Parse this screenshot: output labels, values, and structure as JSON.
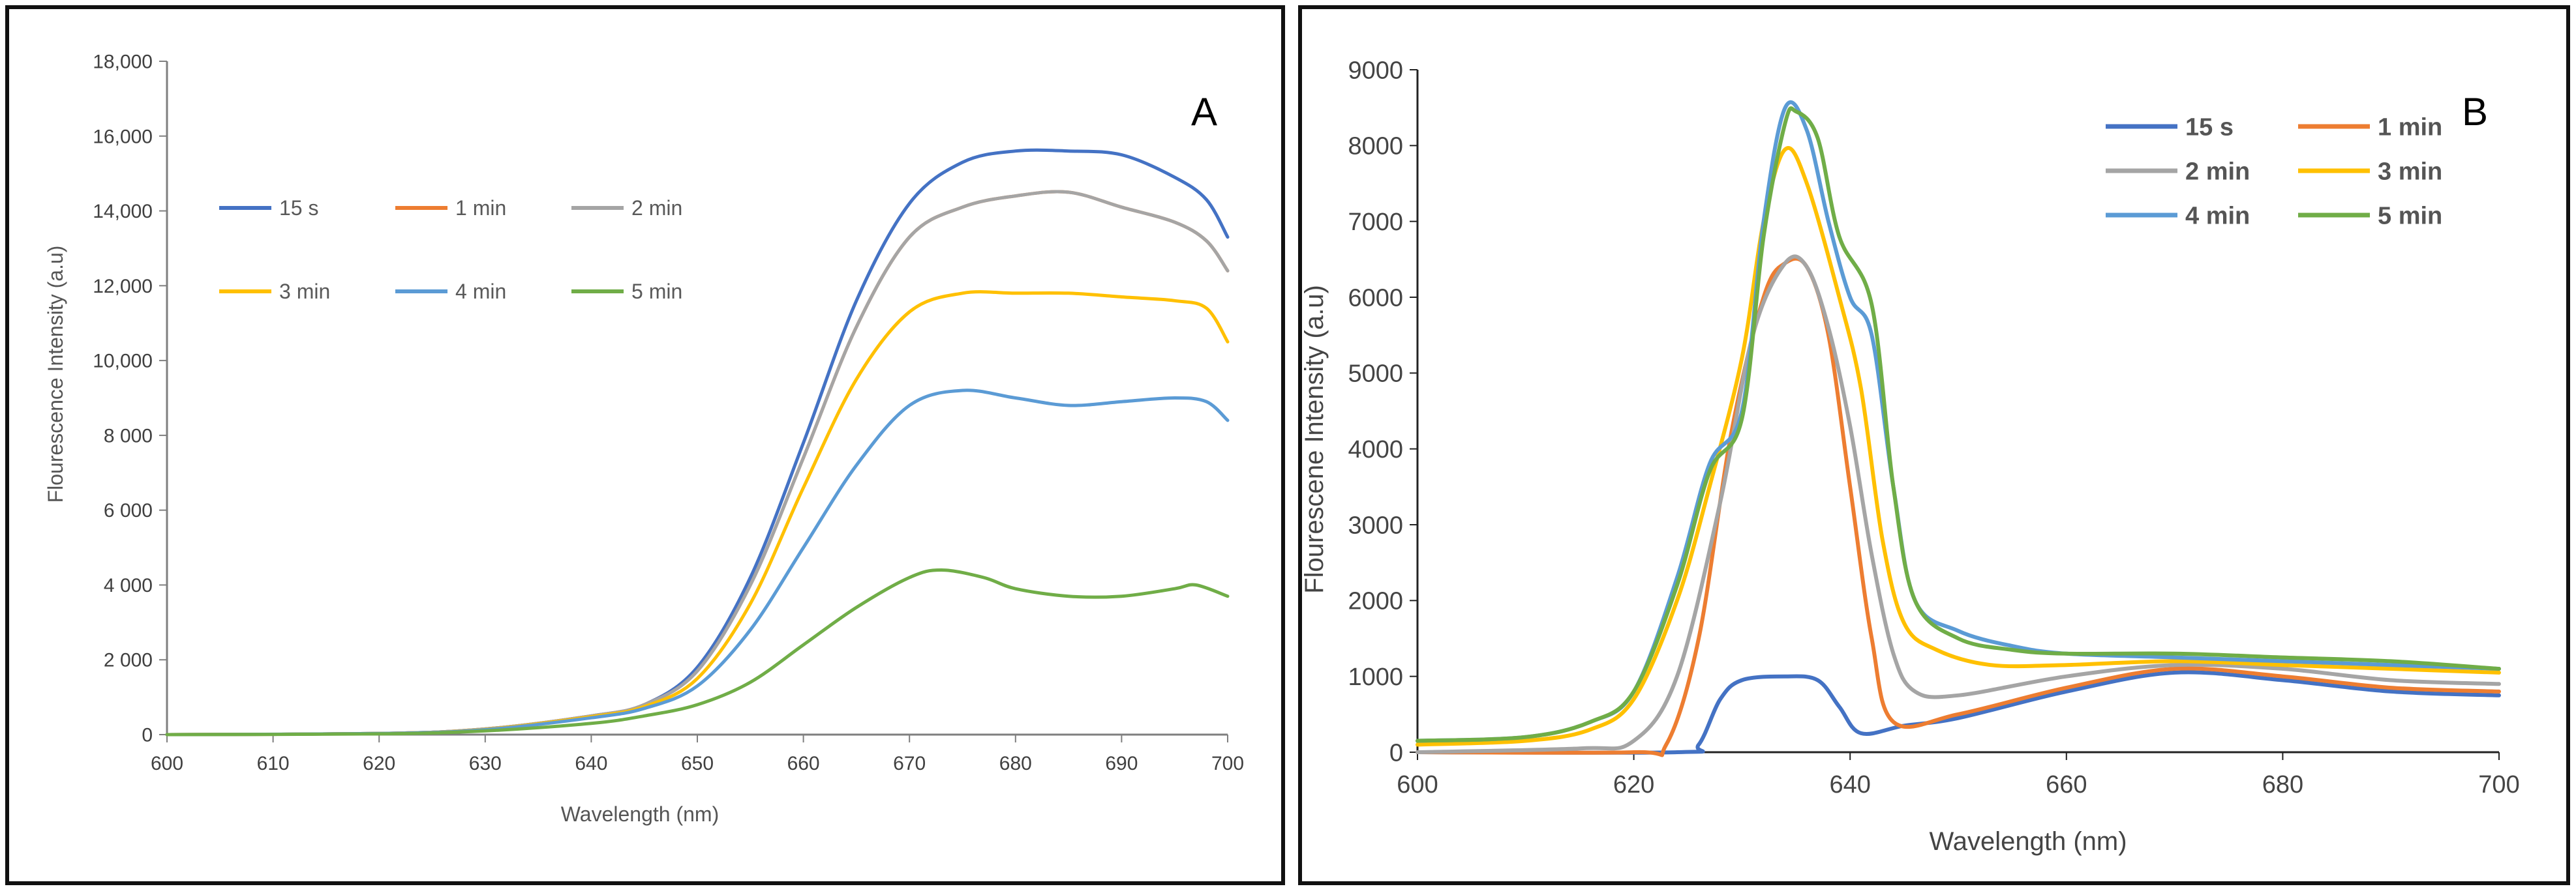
{
  "chart_data": [
    {
      "type": "line",
      "panel": "A",
      "xlabel": "Wavelength (nm)",
      "ylabel": "Flourescence Intensity (a.u)",
      "xlim": [
        600,
        700
      ],
      "ylim": [
        0,
        18000
      ],
      "x_ticks": [
        "600",
        "610",
        "620",
        "630",
        "640",
        "650",
        "660",
        "670",
        "680",
        "690",
        "700"
      ],
      "y_ticks": [
        "0",
        "2 000",
        "4 000",
        "6 000",
        "8 000",
        "10,000",
        "12,000",
        "14,000",
        "16,000",
        "18,000"
      ],
      "legend_position": "top-left",
      "series": [
        {
          "name": "15 s",
          "color": "#4472c4",
          "points": [
            [
              600,
              0
            ],
            [
              620,
              30
            ],
            [
              630,
              150
            ],
            [
              640,
              500
            ],
            [
              645,
              800
            ],
            [
              650,
              1800
            ],
            [
              655,
              4200
            ],
            [
              660,
              7800
            ],
            [
              665,
              11600
            ],
            [
              670,
              14200
            ],
            [
              675,
              15300
            ],
            [
              680,
              15600
            ],
            [
              685,
              15600
            ],
            [
              690,
              15500
            ],
            [
              695,
              14900
            ],
            [
              698,
              14300
            ],
            [
              700,
              13300
            ]
          ]
        },
        {
          "name": "1 min",
          "color": "#ed7d31",
          "points": [
            [
              600,
              0
            ],
            [
              620,
              30
            ],
            [
              630,
              150
            ],
            [
              640,
              500
            ],
            [
              645,
              800
            ],
            [
              650,
              1700
            ],
            [
              655,
              4000
            ],
            [
              660,
              7400
            ],
            [
              665,
              10900
            ],
            [
              670,
              13300
            ],
            [
              675,
              14100
            ],
            [
              680,
              14400
            ],
            [
              685,
              14500
            ],
            [
              690,
              14100
            ],
            [
              695,
              13700
            ],
            [
              698,
              13200
            ],
            [
              700,
              12400
            ]
          ]
        },
        {
          "name": "2 min",
          "color": "#a5a5a5",
          "points": [
            [
              600,
              0
            ],
            [
              620,
              30
            ],
            [
              630,
              150
            ],
            [
              640,
              500
            ],
            [
              645,
              800
            ],
            [
              650,
              1700
            ],
            [
              655,
              4000
            ],
            [
              660,
              7400
            ],
            [
              665,
              10900
            ],
            [
              670,
              13300
            ],
            [
              675,
              14100
            ],
            [
              680,
              14400
            ],
            [
              685,
              14500
            ],
            [
              690,
              14100
            ],
            [
              695,
              13700
            ],
            [
              698,
              13200
            ],
            [
              700,
              12400
            ]
          ]
        },
        {
          "name": "3 min",
          "color": "#ffc000",
          "points": [
            [
              600,
              0
            ],
            [
              620,
              30
            ],
            [
              630,
              140
            ],
            [
              640,
              480
            ],
            [
              645,
              750
            ],
            [
              650,
              1500
            ],
            [
              655,
              3500
            ],
            [
              660,
              6600
            ],
            [
              665,
              9500
            ],
            [
              670,
              11300
            ],
            [
              675,
              11800
            ],
            [
              680,
              11800
            ],
            [
              685,
              11800
            ],
            [
              690,
              11700
            ],
            [
              695,
              11600
            ],
            [
              698,
              11400
            ],
            [
              700,
              10500
            ]
          ]
        },
        {
          "name": "4 min",
          "color": "#5b9bd5",
          "points": [
            [
              600,
              0
            ],
            [
              620,
              30
            ],
            [
              630,
              130
            ],
            [
              640,
              450
            ],
            [
              645,
              700
            ],
            [
              650,
              1300
            ],
            [
              655,
              2800
            ],
            [
              660,
              5000
            ],
            [
              665,
              7200
            ],
            [
              670,
              8800
            ],
            [
              675,
              9200
            ],
            [
              680,
              9000
            ],
            [
              685,
              8800
            ],
            [
              690,
              8900
            ],
            [
              695,
              9000
            ],
            [
              698,
              8900
            ],
            [
              700,
              8400
            ]
          ]
        },
        {
          "name": "5 min",
          "color": "#70ad47",
          "points": [
            [
              600,
              0
            ],
            [
              620,
              20
            ],
            [
              630,
              100
            ],
            [
              640,
              300
            ],
            [
              645,
              500
            ],
            [
              650,
              800
            ],
            [
              655,
              1400
            ],
            [
              660,
              2400
            ],
            [
              665,
              3400
            ],
            [
              670,
              4200
            ],
            [
              673,
              4400
            ],
            [
              677,
              4200
            ],
            [
              680,
              3900
            ],
            [
              685,
              3700
            ],
            [
              690,
              3700
            ],
            [
              695,
              3900
            ],
            [
              697,
              4000
            ],
            [
              700,
              3700
            ]
          ]
        }
      ]
    },
    {
      "type": "line",
      "panel": "B",
      "xlabel": "Wavelength (nm)",
      "ylabel": "Flourescene Intensity (a.u)",
      "xlim": [
        600,
        700
      ],
      "ylim": [
        0,
        9000
      ],
      "x_ticks": [
        "600",
        "620",
        "640",
        "660",
        "680",
        "700"
      ],
      "y_ticks": [
        "0",
        "1000",
        "2000",
        "3000",
        "4000",
        "5000",
        "6000",
        "7000",
        "8000",
        "9000"
      ],
      "legend_position": "top-right",
      "series": [
        {
          "name": "15 s",
          "color": "#4472c4",
          "points": [
            [
              600,
              0
            ],
            [
              624,
              0
            ],
            [
              626,
              100
            ],
            [
              628,
              700
            ],
            [
              630,
              950
            ],
            [
              634,
              1000
            ],
            [
              637,
              950
            ],
            [
              639,
              600
            ],
            [
              641,
              250
            ],
            [
              645,
              350
            ],
            [
              650,
              450
            ],
            [
              660,
              800
            ],
            [
              670,
              1050
            ],
            [
              680,
              950
            ],
            [
              690,
              800
            ],
            [
              700,
              750
            ]
          ]
        },
        {
          "name": "1 min",
          "color": "#ed7d31",
          "points": [
            [
              600,
              0
            ],
            [
              620,
              0
            ],
            [
              623,
              100
            ],
            [
              626,
              1500
            ],
            [
              629,
              4200
            ],
            [
              632,
              6000
            ],
            [
              634,
              6450
            ],
            [
              636,
              6400
            ],
            [
              638,
              5500
            ],
            [
              640,
              3500
            ],
            [
              642,
              1500
            ],
            [
              644,
              400
            ],
            [
              650,
              500
            ],
            [
              660,
              850
            ],
            [
              670,
              1100
            ],
            [
              680,
              1000
            ],
            [
              690,
              850
            ],
            [
              700,
              800
            ]
          ]
        },
        {
          "name": "2 min",
          "color": "#a5a5a5",
          "points": [
            [
              600,
              0
            ],
            [
              615,
              50
            ],
            [
              620,
              150
            ],
            [
              624,
              1000
            ],
            [
              628,
              3300
            ],
            [
              631,
              5500
            ],
            [
              634,
              6450
            ],
            [
              636,
              6400
            ],
            [
              638,
              5600
            ],
            [
              640,
              4300
            ],
            [
              642,
              2600
            ],
            [
              644,
              1300
            ],
            [
              646,
              800
            ],
            [
              650,
              750
            ],
            [
              660,
              1000
            ],
            [
              670,
              1150
            ],
            [
              680,
              1100
            ],
            [
              690,
              950
            ],
            [
              700,
              900
            ]
          ]
        },
        {
          "name": "3 min",
          "color": "#ffc000",
          "points": [
            [
              600,
              100
            ],
            [
              610,
              150
            ],
            [
              616,
              300
            ],
            [
              620,
              700
            ],
            [
              624,
              2000
            ],
            [
              627,
              3500
            ],
            [
              630,
              5200
            ],
            [
              632,
              7000
            ],
            [
              634,
              7950
            ],
            [
              636,
              7500
            ],
            [
              639,
              6000
            ],
            [
              641,
              4800
            ],
            [
              643,
              2800
            ],
            [
              645,
              1700
            ],
            [
              648,
              1350
            ],
            [
              653,
              1150
            ],
            [
              660,
              1150
            ],
            [
              670,
              1200
            ],
            [
              680,
              1150
            ],
            [
              690,
              1100
            ],
            [
              700,
              1050
            ]
          ]
        },
        {
          "name": "4 min",
          "color": "#5b9bd5",
          "points": [
            [
              600,
              150
            ],
            [
              610,
              200
            ],
            [
              616,
              400
            ],
            [
              620,
              800
            ],
            [
              624,
              2300
            ],
            [
              627,
              3800
            ],
            [
              630,
              4500
            ],
            [
              632,
              7000
            ],
            [
              634,
              8500
            ],
            [
              636,
              8200
            ],
            [
              638,
              7000
            ],
            [
              640,
              6000
            ],
            [
              642,
              5500
            ],
            [
              644,
              3500
            ],
            [
              646,
              2000
            ],
            [
              650,
              1600
            ],
            [
              655,
              1400
            ],
            [
              660,
              1300
            ],
            [
              670,
              1250
            ],
            [
              680,
              1200
            ],
            [
              690,
              1150
            ],
            [
              700,
              1100
            ]
          ]
        },
        {
          "name": "5 min",
          "color": "#70ad47",
          "points": [
            [
              600,
              150
            ],
            [
              610,
              200
            ],
            [
              616,
              400
            ],
            [
              620,
              800
            ],
            [
              624,
              2200
            ],
            [
              627,
              3700
            ],
            [
              630,
              4400
            ],
            [
              632,
              6800
            ],
            [
              634,
              8300
            ],
            [
              635,
              8450
            ],
            [
              637,
              8100
            ],
            [
              639,
              6800
            ],
            [
              642,
              5900
            ],
            [
              644,
              3500
            ],
            [
              646,
              2000
            ],
            [
              650,
              1500
            ],
            [
              655,
              1350
            ],
            [
              660,
              1300
            ],
            [
              670,
              1300
            ],
            [
              680,
              1250
            ],
            [
              690,
              1200
            ],
            [
              700,
              1100
            ]
          ]
        }
      ]
    }
  ],
  "panelA": {
    "letter": "A",
    "legend": [
      {
        "label": "15 s",
        "color": "#4472c4"
      },
      {
        "label": "1 min",
        "color": "#ed7d31"
      },
      {
        "label": "2 min",
        "color": "#a5a5a5"
      },
      {
        "label": "3 min",
        "color": "#ffc000"
      },
      {
        "label": "4 min",
        "color": "#5b9bd5"
      },
      {
        "label": "5 min",
        "color": "#70ad47"
      }
    ]
  },
  "panelB": {
    "letter": "B",
    "legend": [
      {
        "label": "15 s",
        "color": "#4472c4"
      },
      {
        "label": "1 min",
        "color": "#ed7d31"
      },
      {
        "label": "2 min",
        "color": "#a5a5a5"
      },
      {
        "label": "3 min",
        "color": "#ffc000"
      },
      {
        "label": "4 min",
        "color": "#5b9bd5"
      },
      {
        "label": "5 min",
        "color": "#70ad47"
      }
    ]
  }
}
